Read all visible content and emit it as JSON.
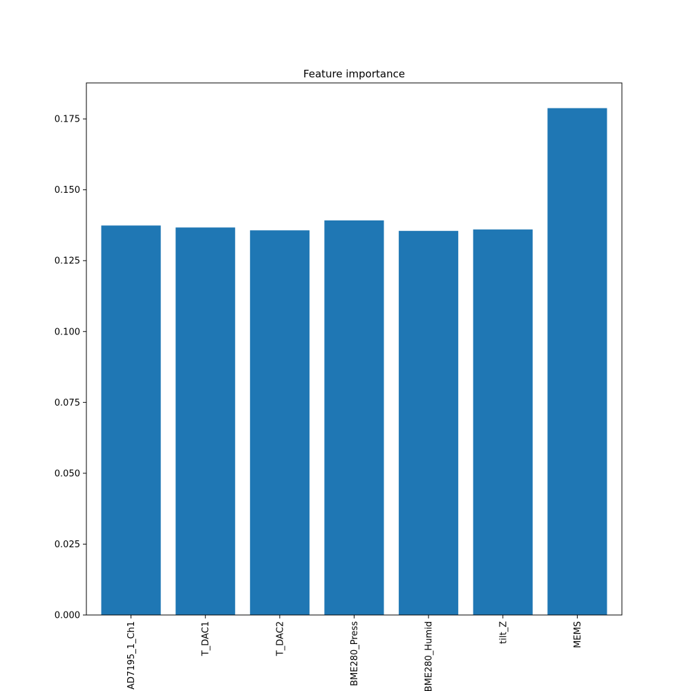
{
  "chart_data": {
    "type": "bar",
    "title": "Feature importance",
    "xlabel": "",
    "ylabel": "",
    "categories": [
      "AD7195_1_Ch1",
      "T_DAC1",
      "T_DAC2",
      "BME280_Press",
      "BME280_Humid",
      "tilt_Z",
      "MEMS"
    ],
    "values": [
      0.1374,
      0.1367,
      0.1357,
      0.1392,
      0.1355,
      0.136,
      0.1788
    ],
    "yticks": [
      "0.000",
      "0.025",
      "0.050",
      "0.075",
      "0.100",
      "0.125",
      "0.150",
      "0.175"
    ],
    "ylim": [
      0,
      0.1877
    ],
    "grid": false,
    "legend": "none",
    "bar_color": "#1f77b4"
  }
}
